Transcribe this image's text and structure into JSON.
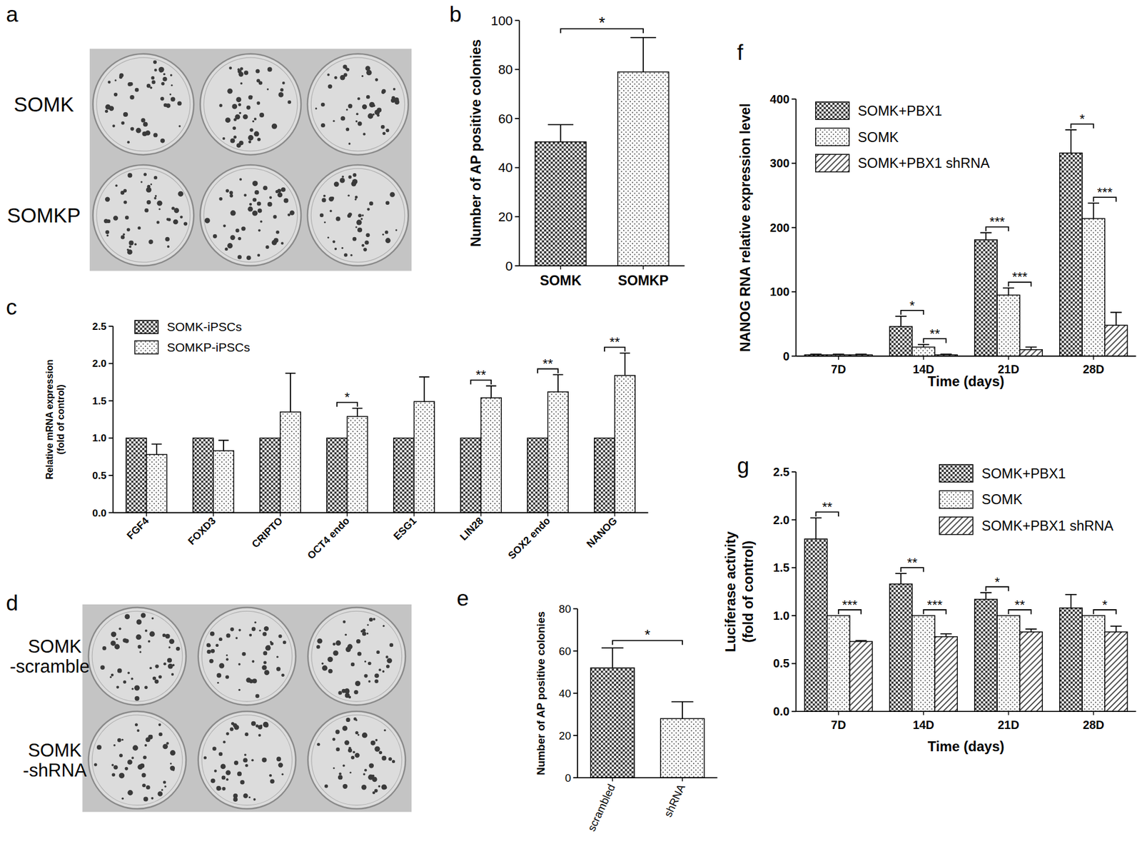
{
  "photos": [
    {
      "panel": "a",
      "rows": [
        [
          "SOMK"
        ],
        [
          "SOMKP"
        ]
      ],
      "dishes_per_row": 3
    },
    {
      "panel": "d",
      "rows": [
        [
          "SOMK",
          "-scrambled"
        ],
        [
          "SOMK",
          "-shRNA"
        ]
      ],
      "dishes_per_row": 3
    }
  ],
  "chart_data": [
    {
      "panel": "b",
      "type": "bar",
      "y_label": [
        "Number of AP positive colonies"
      ],
      "categories": [
        "SOMK",
        "SOMKP"
      ],
      "values": [
        50.5,
        79
      ],
      "errors": [
        7,
        14
      ],
      "colors": [
        "#333333",
        "#555555"
      ],
      "ylim": [
        0,
        100
      ],
      "yticks": [
        0,
        20,
        40,
        60,
        80,
        100
      ],
      "significance": [
        {
          "from": 0,
          "to": 1,
          "label": "*"
        }
      ]
    },
    {
      "panel": "c",
      "type": "bar",
      "y_label": [
        "Relative mRNA expression",
        "(fold of control)"
      ],
      "categories": [
        "FGF4",
        "FOXD3",
        "CRIPTO",
        "OCT4 endo",
        "ESG1",
        "LIN28",
        "SOX2 endo",
        "NANOG"
      ],
      "series": [
        {
          "name": "SOMK-iPSCs",
          "color": "#333333",
          "values": [
            1,
            1,
            1,
            1,
            1,
            1,
            1,
            1
          ]
        },
        {
          "name": "SOMKP-iPSCs",
          "color": "#555555",
          "values": [
            0.78,
            0.83,
            1.35,
            1.29,
            1.49,
            1.54,
            1.62,
            1.84
          ],
          "errors": [
            0.14,
            0.14,
            0.52,
            0.11,
            0.33,
            0.16,
            0.23,
            0.3
          ]
        }
      ],
      "ylim": [
        0,
        2.5
      ],
      "yticks": [
        {
          "value": 0,
          "label": "0.0"
        },
        {
          "value": 0.5,
          "label": "0.5"
        },
        {
          "value": 1,
          "label": "1.0"
        },
        {
          "value": 1.5,
          "label": "1.5"
        },
        {
          "value": 2,
          "label": "2.0"
        },
        {
          "value": 2.5,
          "label": "2.5"
        }
      ],
      "legend": "upper left",
      "significance": [
        {
          "category": 3,
          "from": 0,
          "to": 1,
          "label": "*"
        },
        {
          "category": 5,
          "from": 0,
          "to": 1,
          "label": "**"
        },
        {
          "category": 6,
          "from": 0,
          "to": 1,
          "label": "**"
        },
        {
          "category": 7,
          "from": 0,
          "to": 1,
          "label": "**"
        }
      ]
    },
    {
      "panel": "e",
      "type": "bar",
      "y_label": [
        "Number of AP positive colonies"
      ],
      "categories": [
        "scrambled",
        "shRNA"
      ],
      "values": [
        52,
        28
      ],
      "errors": [
        9.5,
        8
      ],
      "colors": [
        "#333333",
        "#555555"
      ],
      "ylim": [
        0,
        80
      ],
      "yticks": [
        0,
        20,
        40,
        60,
        80
      ],
      "significance": [
        {
          "from": 0,
          "to": 1,
          "label": "*"
        }
      ]
    },
    {
      "panel": "f",
      "type": "bar",
      "y_label": [
        "NANOG RNA relative expression level"
      ],
      "x_label": "Time (days)",
      "categories": [
        "7D",
        "14D",
        "21D",
        "28D"
      ],
      "series": [
        {
          "name": "SOMK+PBX1",
          "color": "#333333",
          "values": [
            2,
            46,
            181,
            316
          ],
          "errors": [
            1,
            16,
            11,
            36
          ]
        },
        {
          "name": "SOMK",
          "color": "#555555",
          "values": [
            2,
            14,
            95,
            214
          ],
          "errors": [
            1,
            4,
            11,
            24
          ]
        },
        {
          "name": "SOMK+PBX1 shRNA",
          "color": "#333333",
          "values": [
            2,
            2,
            10,
            48
          ],
          "errors": [
            1,
            1,
            4,
            20
          ]
        }
      ],
      "ylim": [
        0,
        400
      ],
      "yticks": [
        0,
        100,
        200,
        300,
        400
      ],
      "legend": "upper left",
      "significance": [
        {
          "category": 1,
          "from": 0,
          "to": 1,
          "label": "*"
        },
        {
          "category": 1,
          "from": 1,
          "to": 2,
          "label": "**"
        },
        {
          "category": 2,
          "from": 0,
          "to": 1,
          "label": "***"
        },
        {
          "category": 2,
          "from": 1,
          "to": 2,
          "label": "***"
        },
        {
          "category": 3,
          "from": 0,
          "to": 1,
          "label": "*"
        },
        {
          "category": 3,
          "from": 1,
          "to": 2,
          "label": "***"
        }
      ]
    },
    {
      "panel": "g",
      "type": "bar",
      "y_label": [
        "Luciferase activity",
        "(fold of control)"
      ],
      "x_label": "Time (days)",
      "categories": [
        "7D",
        "14D",
        "21D",
        "28D"
      ],
      "series": [
        {
          "name": "SOMK+PBX1",
          "color": "#333333",
          "values": [
            1.8,
            1.33,
            1.17,
            1.08
          ],
          "errors": [
            0.22,
            0.11,
            0.07,
            0.14
          ]
        },
        {
          "name": "SOMK",
          "color": "#555555",
          "values": [
            1,
            1,
            1,
            1
          ]
        },
        {
          "name": "SOMK+PBX1 shRNA",
          "color": "#333333",
          "values": [
            0.73,
            0.78,
            0.83,
            0.83
          ],
          "errors": [
            0.01,
            0.03,
            0.03,
            0.06
          ]
        }
      ],
      "ylim": [
        0,
        2.5
      ],
      "yticks": [
        {
          "value": 0,
          "label": "0.0"
        },
        {
          "value": 0.5,
          "label": "0.5"
        },
        {
          "value": 1,
          "label": "1.0"
        },
        {
          "value": 1.5,
          "label": "1.5"
        },
        {
          "value": 2,
          "label": "2.0"
        },
        {
          "value": 2.5,
          "label": "2.5"
        }
      ],
      "legend": "upper right",
      "significance": [
        {
          "category": 0,
          "from": 0,
          "to": 1,
          "label": "**"
        },
        {
          "category": 0,
          "from": 1,
          "to": 2,
          "label": "***"
        },
        {
          "category": 1,
          "from": 0,
          "to": 1,
          "label": "**"
        },
        {
          "category": 1,
          "from": 1,
          "to": 2,
          "label": "***"
        },
        {
          "category": 2,
          "from": 0,
          "to": 1,
          "label": "*"
        },
        {
          "category": 2,
          "from": 1,
          "to": 2,
          "label": "**"
        },
        {
          "category": 3,
          "from": 1,
          "to": 2,
          "label": "*"
        }
      ]
    }
  ]
}
